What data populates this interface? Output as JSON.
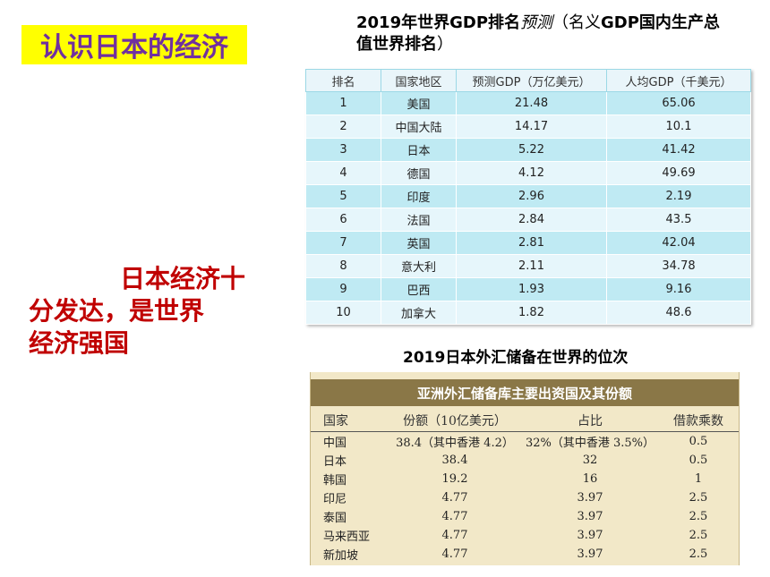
{
  "title": "认识日本的经济",
  "slogan": [
    "日本经济十",
    "分发达，是世界",
    "经济强国"
  ],
  "gdp": {
    "heading_bold_1": "2019年世界GDP排名",
    "heading_italic": "预测",
    "heading_normal": "（名义",
    "heading_bold_2": "GDP国内生产总值世界排名",
    "heading_end": "）",
    "headers": [
      "排名",
      "国家地区",
      "预测GDP（万亿美元）",
      "人均GDP（千美元）"
    ],
    "rows": [
      [
        "1",
        "美国",
        "21.48",
        "65.06"
      ],
      [
        "2",
        "中国大陆",
        "14.17",
        "10.1"
      ],
      [
        "3",
        "日本",
        "5.22",
        "41.42"
      ],
      [
        "4",
        "德国",
        "4.12",
        "49.69"
      ],
      [
        "5",
        "印度",
        "2.96",
        "2.19"
      ],
      [
        "6",
        "法国",
        "2.84",
        "43.5"
      ],
      [
        "7",
        "英国",
        "2.81",
        "42.04"
      ],
      [
        "8",
        "意大利",
        "2.11",
        "34.78"
      ],
      [
        "9",
        "巴西",
        "1.93",
        "9.16"
      ],
      [
        "10",
        "加拿大",
        "1.82",
        "48.6"
      ]
    ]
  },
  "fx": {
    "heading": "2019日本外汇储备在世界的位次",
    "banner": "亚洲外汇储备库主要出资国及其份额",
    "headers": [
      "国家",
      "份额（10亿美元）",
      "占比",
      "借款乘数"
    ],
    "rows": [
      [
        "中国",
        "38.4（其中香港 4.2）",
        "32%（其中香港 3.5%）",
        "0.5"
      ],
      [
        "日本",
        "38.4",
        "32",
        "0.5"
      ],
      [
        "韩国",
        "19.2",
        "16",
        "1"
      ],
      [
        "印尼",
        "4.77",
        "3.97",
        "2.5"
      ],
      [
        "泰国",
        "4.77",
        "3.97",
        "2.5"
      ],
      [
        "马来西亚",
        "4.77",
        "3.97",
        "2.5"
      ],
      [
        "新加坡",
        "4.77",
        "3.97",
        "2.5"
      ]
    ]
  }
}
